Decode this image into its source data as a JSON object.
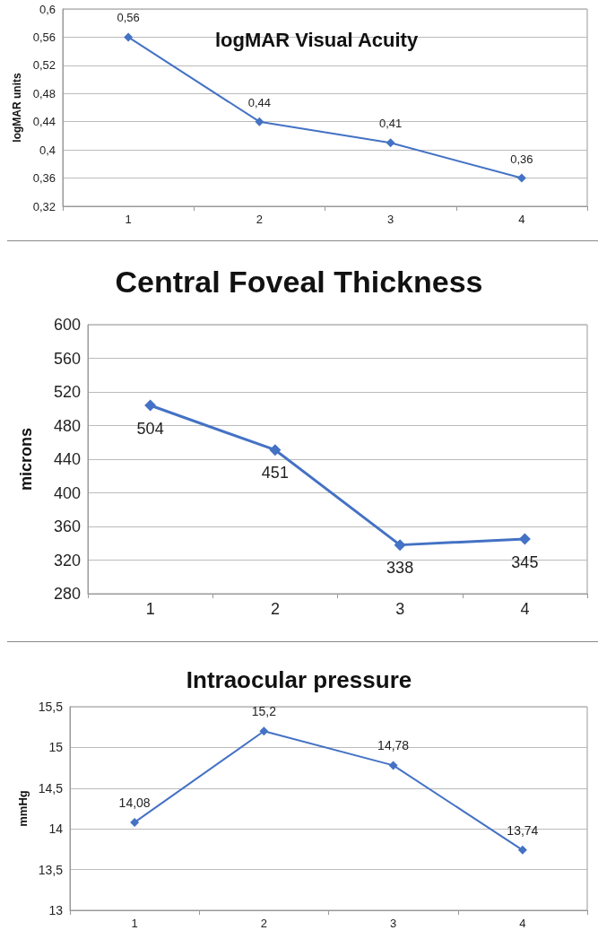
{
  "chart_data": [
    {
      "type": "line",
      "title": "logMAR Visual Acuity",
      "ylabel": "logMAR units",
      "categories": [
        "1",
        "2",
        "3",
        "4"
      ],
      "series": [
        {
          "color": "#4472c4",
          "values": [
            0.56,
            0.44,
            0.41,
            0.36
          ],
          "value_labels": [
            "0,56",
            "0,44",
            "0,41",
            "0,36"
          ]
        }
      ],
      "ylim": [
        0.32,
        0.6
      ],
      "yticks": [
        {
          "value": 0.32,
          "label": "0,32"
        },
        {
          "value": 0.36,
          "label": "0,36"
        },
        {
          "value": 0.4,
          "label": "0,4"
        },
        {
          "value": 0.44,
          "label": "0,44"
        },
        {
          "value": 0.48,
          "label": "0,48"
        },
        {
          "value": 0.52,
          "label": "0,52"
        },
        {
          "value": 0.56,
          "label": "0,56"
        },
        {
          "value": 0.6,
          "label": "0,6"
        }
      ],
      "grid": "y",
      "marker": "diamond",
      "line_style": "solid"
    },
    {
      "type": "line",
      "title": "Central Foveal Thickness",
      "ylabel": "microns",
      "categories": [
        "1",
        "2",
        "3",
        "4"
      ],
      "series": [
        {
          "color": "#4472c4",
          "values": [
            504,
            451,
            338,
            345
          ]
        }
      ],
      "ylim": [
        280,
        600
      ],
      "yticks": [
        280,
        320,
        360,
        400,
        440,
        480,
        520,
        560,
        600
      ],
      "grid": "y",
      "marker": "diamond",
      "line_style": "solid",
      "data_labels": true
    },
    {
      "type": "line",
      "title": "Intraocular pressure",
      "ylabel": "mmHg",
      "categories": [
        "1",
        "2",
        "3",
        "4"
      ],
      "series": [
        {
          "color": "#4472c4",
          "values": [
            14.08,
            15.2,
            14.78,
            13.74
          ],
          "value_labels": [
            "14,08",
            "15,2",
            "14,78",
            "13,74"
          ]
        }
      ],
      "ylim": [
        13,
        15.5
      ],
      "yticks": [
        13,
        {
          "value": 13.5,
          "label": "13,5"
        },
        14,
        {
          "value": 14.5,
          "label": "14,5"
        },
        15,
        {
          "value": 15.5,
          "label": "15,5"
        }
      ],
      "grid": "y",
      "marker": "diamond",
      "line_style": "solid"
    }
  ]
}
